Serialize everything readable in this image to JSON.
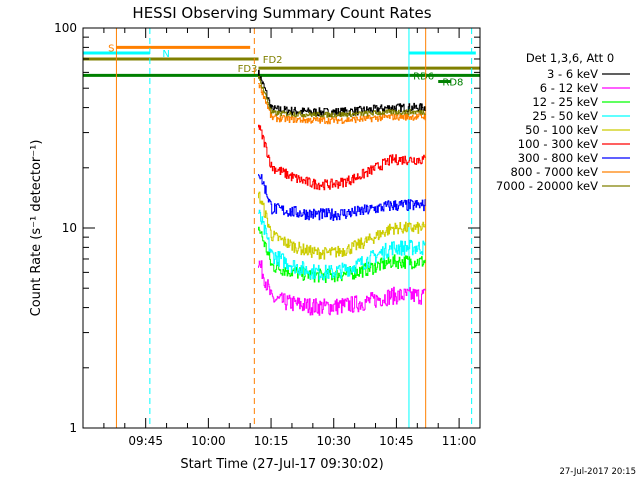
{
  "chart_data": {
    "type": "line",
    "title": "HESSI Observing Summary Count Rates",
    "xlabel": "Start Time (27-Jul-17 09:30:02)",
    "ylabel": "Count Rate (s⁻¹ detector⁻¹)",
    "y_scale": "log",
    "ylim": [
      1,
      100
    ],
    "xlim": [
      "09:30",
      "11:05"
    ],
    "x_ticks": [
      "09:45",
      "10:00",
      "10:15",
      "10:30",
      "10:45",
      "11:00"
    ],
    "y_ticks": [
      "1",
      "10",
      "100"
    ],
    "grid": false,
    "legend_position": "right",
    "legend_header": "Det 1,3,6, Att 0",
    "timestamp": "27-Jul-2017 20:15",
    "data_window": [
      "10:12",
      "10:52"
    ],
    "series": [
      {
        "name": "3 - 6 keV",
        "color": "#000000",
        "level": 40,
        "dip": 0.05,
        "noise": 0.05
      },
      {
        "name": "6 - 12 keV",
        "color": "#ff00ff",
        "level": 4.6,
        "dip": 0.12,
        "noise": 0.1
      },
      {
        "name": "12 - 25 keV",
        "color": "#00ff00",
        "level": 6.8,
        "dip": 0.15,
        "noise": 0.08
      },
      {
        "name": "25 - 50 keV",
        "color": "#00ffff",
        "level": 8.0,
        "dip": 0.25,
        "noise": 0.09
      },
      {
        "name": "50 - 100 keV",
        "color": "#cccc00",
        "level": 10.0,
        "dip": 0.25,
        "noise": 0.07
      },
      {
        "name": "100 - 300 keV",
        "color": "#ff0000",
        "level": 22,
        "dip": 0.25,
        "noise": 0.06
      },
      {
        "name": "300 - 800 keV",
        "color": "#0000ff",
        "level": 13,
        "dip": 0.1,
        "noise": 0.07
      },
      {
        "name": "800 - 7000 keV",
        "color": "#ff8000",
        "level": 36,
        "dip": 0.04,
        "noise": 0.04
      },
      {
        "name": "7000 - 20000 keV",
        "color": "#808000",
        "level": 38,
        "dip": 0.03,
        "noise": 0.03
      }
    ],
    "flag_bars": [
      {
        "label": "S",
        "color": "#ff8000",
        "y": 80,
        "from": "09:38",
        "to": "10:10",
        "label_at": "09:36"
      },
      {
        "label": "N",
        "color": "#00ffff",
        "y": 75,
        "from": "09:30",
        "to": "09:46",
        "label_at": "09:49"
      },
      {
        "label": "N",
        "color": "#00ffff",
        "y": 75,
        "from": "10:48",
        "to": "11:04",
        "label_at": ""
      },
      {
        "label": "FD2",
        "color": "#808000",
        "y": 70,
        "from": "09:30",
        "to": "10:12",
        "label_at": "10:13"
      },
      {
        "label": "FD3",
        "color": "#808000",
        "y": 63,
        "from": "10:12",
        "to": "11:05",
        "label_at": "10:07"
      },
      {
        "label": "RD6",
        "color": "#008000",
        "y": 58,
        "from": "09:30",
        "to": "11:05",
        "label_at": "10:49"
      },
      {
        "label": "RD8",
        "color": "#008000",
        "y": 54,
        "from": "10:55",
        "to": "10:58",
        "label_at": "10:56"
      }
    ],
    "vertical_markers": [
      {
        "time": "09:38",
        "color": "#ff8000",
        "style": "solid"
      },
      {
        "time": "09:46",
        "color": "#00ffff",
        "style": "dashed"
      },
      {
        "time": "10:11",
        "color": "#ff8000",
        "style": "dashed"
      },
      {
        "time": "10:48",
        "color": "#00ffff",
        "style": "solid"
      },
      {
        "time": "10:52",
        "color": "#ff8000",
        "style": "solid"
      },
      {
        "time": "11:03",
        "color": "#00ffff",
        "style": "dashed"
      }
    ]
  }
}
